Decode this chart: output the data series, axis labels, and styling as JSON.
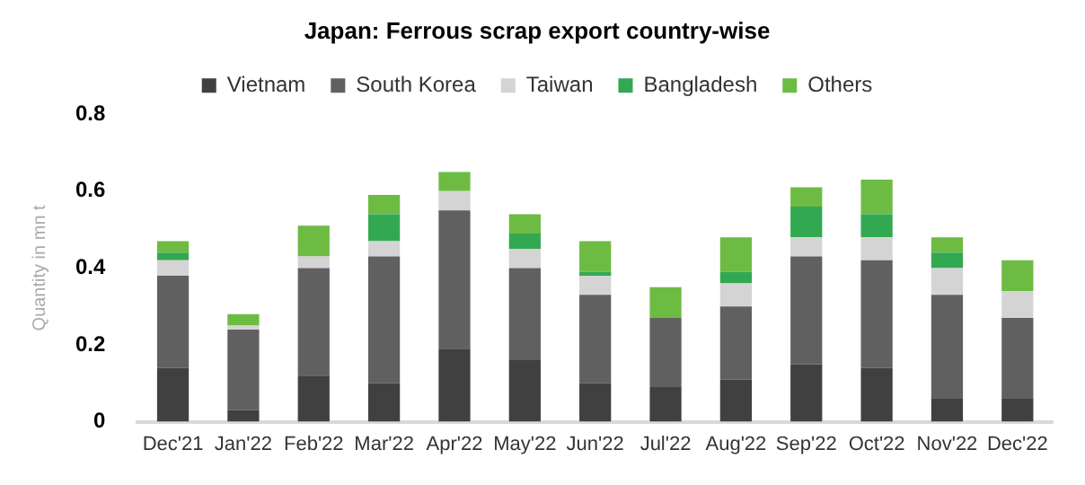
{
  "chart_data": {
    "type": "bar",
    "title": "Japan: Ferrous scrap export country-wise",
    "ylabel": "Quantity in mn t",
    "categories": [
      "Dec'21",
      "Jan'22",
      "Feb'22",
      "Mar'22",
      "Apr'22",
      "May'22",
      "Jun'22",
      "Jul'22",
      "Aug'22",
      "Sep'22",
      "Oct'22",
      "Nov'22",
      "Dec'22"
    ],
    "stacked": true,
    "ylim": [
      0,
      0.8
    ],
    "yticks": [
      0,
      0.2,
      0.4,
      0.6,
      0.8
    ],
    "grid": false,
    "legend": "top",
    "series": [
      {
        "name": "Vietnam",
        "color": "#404040",
        "values": [
          0.14,
          0.03,
          0.12,
          0.1,
          0.19,
          0.16,
          0.1,
          0.09,
          0.11,
          0.15,
          0.14,
          0.06,
          0.06
        ]
      },
      {
        "name": "South Korea",
        "color": "#606060",
        "values": [
          0.24,
          0.21,
          0.28,
          0.33,
          0.36,
          0.24,
          0.23,
          0.18,
          0.19,
          0.28,
          0.28,
          0.27,
          0.21
        ]
      },
      {
        "name": "Taiwan",
        "color": "#d4d4d4",
        "values": [
          0.04,
          0.01,
          0.03,
          0.04,
          0.05,
          0.05,
          0.05,
          0,
          0.06,
          0.05,
          0.06,
          0.07,
          0.07
        ]
      },
      {
        "name": "Bangladesh",
        "color": "#33a852",
        "values": [
          0.02,
          0,
          0,
          0.07,
          0,
          0.04,
          0.01,
          0,
          0.03,
          0.08,
          0.06,
          0.04,
          0
        ]
      },
      {
        "name": "Others",
        "color": "#6ebb44",
        "values": [
          0.03,
          0.03,
          0.08,
          0.05,
          0.05,
          0.05,
          0.08,
          0.08,
          0.09,
          0.05,
          0.09,
          0.04,
          0.08
        ]
      }
    ]
  }
}
